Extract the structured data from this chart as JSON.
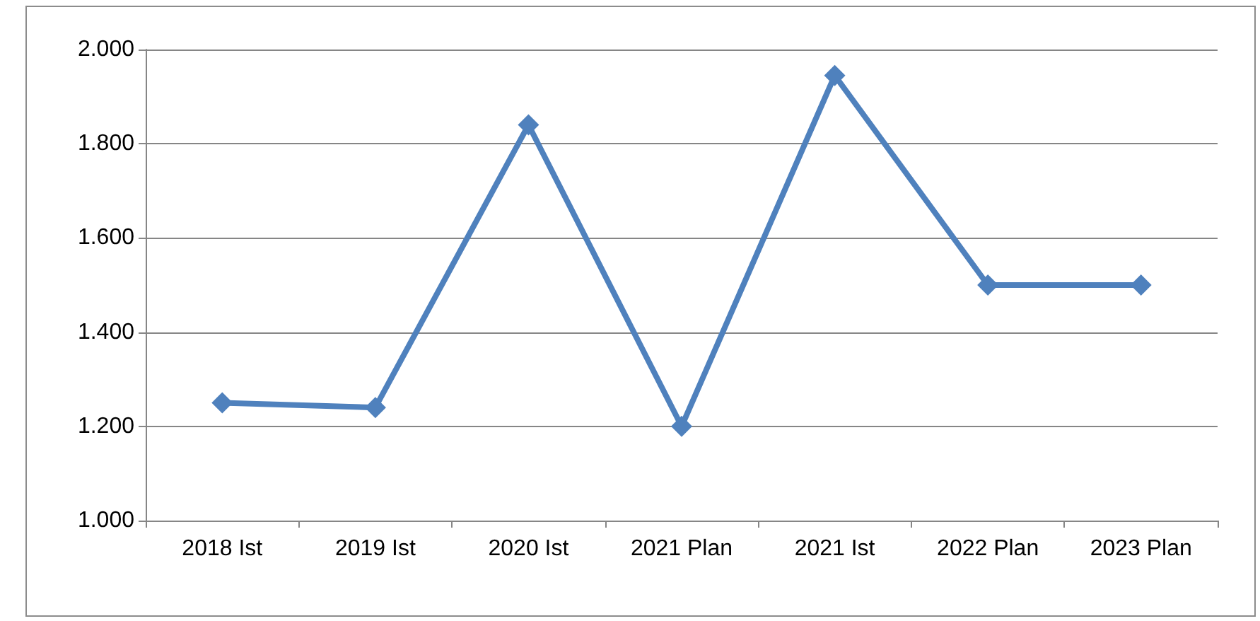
{
  "chart_data": {
    "type": "line",
    "categories": [
      "2018 Ist",
      "2019 Ist",
      "2020 Ist",
      "2021 Plan",
      "2021 Ist",
      "2022 Plan",
      "2023 Plan"
    ],
    "series": [
      {
        "color": "#4f81bd",
        "values": [
          1250,
          1240,
          1840,
          1200,
          1945,
          1500,
          1500
        ]
      }
    ],
    "ylim": [
      1000,
      2000
    ],
    "yticks": [
      {
        "value": 1000,
        "label": "1.000"
      },
      {
        "value": 1200,
        "label": "1.200"
      },
      {
        "value": 1400,
        "label": "1.400"
      },
      {
        "value": 1600,
        "label": "1.600"
      },
      {
        "value": 1800,
        "label": "1.800"
      },
      {
        "value": 2000,
        "label": "2.000"
      }
    ],
    "grid": "y",
    "marker": "diamond",
    "line_style": "solid"
  }
}
